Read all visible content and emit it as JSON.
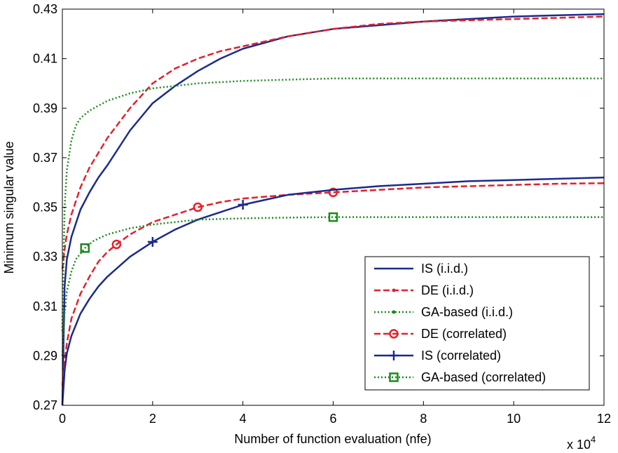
{
  "chart_data": {
    "type": "line",
    "title": "",
    "xlabel": "Number of function evaluation (nfe)",
    "ylabel": "Minimum singular value",
    "x_multiplier": "x 10",
    "x_multiplier_exp": "4",
    "xlim": [
      0,
      12
    ],
    "ylim": [
      0.27,
      0.43
    ],
    "xticks": [
      0,
      2,
      4,
      6,
      8,
      10,
      12
    ],
    "xtick_labels": [
      "0",
      "2",
      "4",
      "6",
      "8",
      "10",
      "12"
    ],
    "yticks": [
      0.27,
      0.29,
      0.31,
      0.33,
      0.35,
      0.37,
      0.39,
      0.41,
      0.43
    ],
    "ytick_labels": [
      "0.27",
      "0.29",
      "0.31",
      "0.33",
      "0.35",
      "0.37",
      "0.39",
      "0.41",
      "0.43"
    ],
    "grid": false,
    "legend_position": "bottom-right",
    "series": [
      {
        "name": "IS (i.i.d.)",
        "color": "#1a2b8c",
        "dash": "solid",
        "marker": "none",
        "x": [
          0,
          0.05,
          0.1,
          0.2,
          0.4,
          0.6,
          0.8,
          1,
          1.5,
          2,
          2.5,
          3,
          3.5,
          4,
          5,
          6,
          7,
          8,
          9,
          10,
          11,
          12
        ],
        "y": [
          0.27,
          0.318,
          0.329,
          0.338,
          0.349,
          0.356,
          0.362,
          0.367,
          0.381,
          0.392,
          0.399,
          0.405,
          0.41,
          0.414,
          0.419,
          0.422,
          0.4235,
          0.425,
          0.426,
          0.427,
          0.4275,
          0.428
        ]
      },
      {
        "name": "DE (i.i.d.)",
        "color": "#e4202a",
        "dash": "dash",
        "marker": "none",
        "x": [
          0,
          0.05,
          0.1,
          0.2,
          0.4,
          0.6,
          0.8,
          1,
          1.5,
          2,
          2.5,
          3,
          3.5,
          4,
          5,
          6,
          7,
          8,
          9,
          10,
          11,
          12
        ],
        "y": [
          0.325,
          0.333,
          0.339,
          0.347,
          0.358,
          0.366,
          0.372,
          0.378,
          0.39,
          0.4,
          0.406,
          0.41,
          0.413,
          0.415,
          0.419,
          0.422,
          0.424,
          0.425,
          0.4255,
          0.426,
          0.4265,
          0.427
        ]
      },
      {
        "name": "GA-based (i.i.d.)",
        "color": "#1a8a1a",
        "dash": "dot",
        "marker": "none",
        "x": [
          0,
          0.05,
          0.1,
          0.2,
          0.3,
          0.4,
          0.6,
          0.8,
          1,
          1.5,
          2,
          2.5,
          3,
          4,
          5,
          6,
          8,
          10,
          12
        ],
        "y": [
          0.3,
          0.35,
          0.365,
          0.377,
          0.383,
          0.386,
          0.389,
          0.391,
          0.393,
          0.396,
          0.398,
          0.399,
          0.4,
          0.401,
          0.4015,
          0.402,
          0.402,
          0.402,
          0.402
        ]
      },
      {
        "name": "DE (correlated)",
        "color": "#e4202a",
        "dash": "dash",
        "marker": "circle",
        "marker_x": [
          1.2,
          3,
          6
        ],
        "x": [
          0,
          0.05,
          0.1,
          0.2,
          0.4,
          0.6,
          0.8,
          1,
          1.2,
          1.5,
          2,
          2.5,
          3,
          3.5,
          4,
          5,
          6,
          7,
          8,
          9,
          10,
          11,
          12
        ],
        "y": [
          0.278,
          0.288,
          0.295,
          0.305,
          0.315,
          0.322,
          0.328,
          0.332,
          0.335,
          0.339,
          0.344,
          0.347,
          0.35,
          0.352,
          0.3535,
          0.355,
          0.356,
          0.357,
          0.358,
          0.3585,
          0.359,
          0.3595,
          0.3597
        ]
      },
      {
        "name": "IS (correlated)",
        "color": "#1a2b8c",
        "dash": "solid",
        "marker": "plus",
        "marker_x": [
          2,
          4
        ],
        "x": [
          0,
          0.05,
          0.1,
          0.2,
          0.4,
          0.6,
          0.8,
          1,
          1.5,
          2,
          2.5,
          3,
          3.5,
          4,
          5,
          6,
          7,
          8,
          9,
          10,
          11,
          12
        ],
        "y": [
          0.27,
          0.284,
          0.291,
          0.298,
          0.307,
          0.313,
          0.318,
          0.322,
          0.33,
          0.336,
          0.341,
          0.345,
          0.348,
          0.351,
          0.355,
          0.357,
          0.3585,
          0.3595,
          0.3605,
          0.361,
          0.3615,
          0.362
        ]
      },
      {
        "name": "GA-based (correlated)",
        "color": "#1a8a1a",
        "dash": "dot",
        "marker": "square",
        "marker_x": [
          0.5,
          6
        ],
        "x": [
          0,
          0.05,
          0.1,
          0.2,
          0.3,
          0.5,
          0.7,
          1,
          1.5,
          2,
          2.5,
          3,
          4,
          5,
          6,
          8,
          10,
          12
        ],
        "y": [
          0.29,
          0.307,
          0.316,
          0.324,
          0.329,
          0.3335,
          0.3365,
          0.339,
          0.3415,
          0.343,
          0.344,
          0.345,
          0.3455,
          0.3458,
          0.346,
          0.346,
          0.346,
          0.346
        ]
      }
    ]
  }
}
